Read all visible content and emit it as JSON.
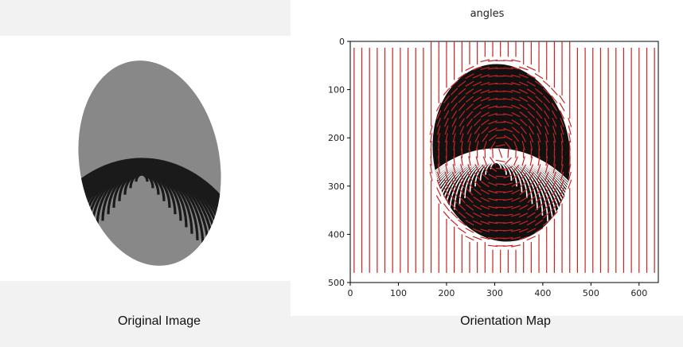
{
  "left_panel": {
    "caption": "Original Image"
  },
  "right_panel": {
    "caption": "Orientation Map",
    "plot_title": "angles",
    "x_ticks": [
      "0",
      "100",
      "200",
      "300",
      "400",
      "500",
      "600"
    ],
    "y_ticks": [
      "0",
      "100",
      "200",
      "300",
      "400",
      "500"
    ],
    "line_color": "#cc2222"
  }
}
